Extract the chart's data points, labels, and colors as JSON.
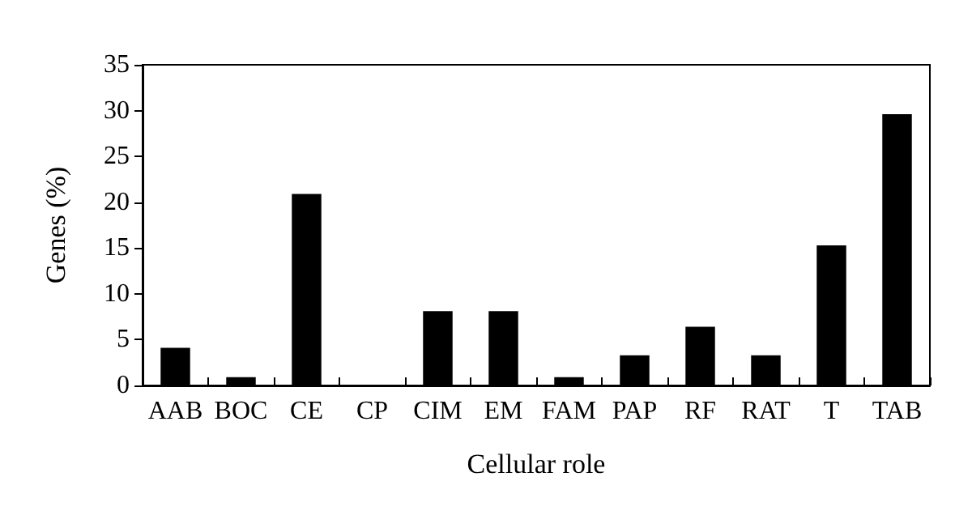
{
  "chart_data": {
    "type": "bar",
    "xlabel": "Cellular role",
    "ylabel": "Genes (%)",
    "categories": [
      "AAB",
      "BOC",
      "CE",
      "CP",
      "CIM",
      "EM",
      "FAM",
      "PAP",
      "RF",
      "RAT",
      "T",
      "TAB"
    ],
    "values": [
      4.1,
      0.9,
      20.9,
      0,
      8.1,
      8.1,
      0.9,
      3.3,
      6.4,
      3.3,
      15.3,
      29.6
    ],
    "color": "#000000",
    "ylim": [
      0,
      35
    ],
    "yticks": [
      0,
      5,
      10,
      15,
      20,
      25,
      30,
      35
    ],
    "grid": false
  }
}
